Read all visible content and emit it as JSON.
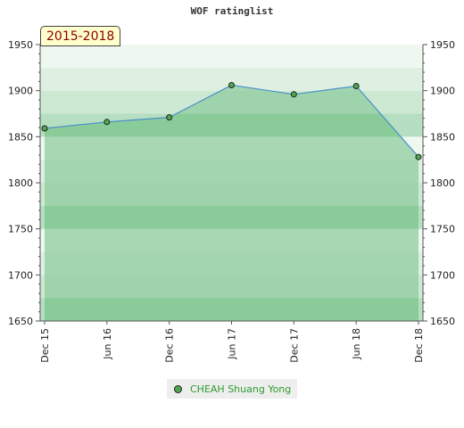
{
  "header": {
    "title": "WOF ratinglist",
    "period": "2015-2018"
  },
  "chart_data": {
    "type": "area",
    "title": "WOF ratinglist",
    "categories": [
      "Dec 15",
      "Jun 16",
      "Dec 16",
      "Jun 17",
      "Dec 17",
      "Jun 18",
      "Dec 18"
    ],
    "series": [
      {
        "name": "CHEAH Shuang Yong",
        "values": [
          1859,
          1866,
          1871,
          1906,
          1896,
          1905,
          1828
        ]
      }
    ],
    "ylim": [
      1650,
      1950
    ],
    "yticks": [
      1650,
      1700,
      1750,
      1800,
      1850,
      1900,
      1950
    ],
    "grid": true,
    "legend": "bottom",
    "colors": {
      "line": "#4a90c8",
      "fill": "#8fcc9f",
      "marker": "#4fa84f",
      "badge_text": "#8b0000"
    }
  },
  "legend": {
    "marker_icon": "circle-marker-icon",
    "label": "CHEAH Shuang Yong"
  }
}
